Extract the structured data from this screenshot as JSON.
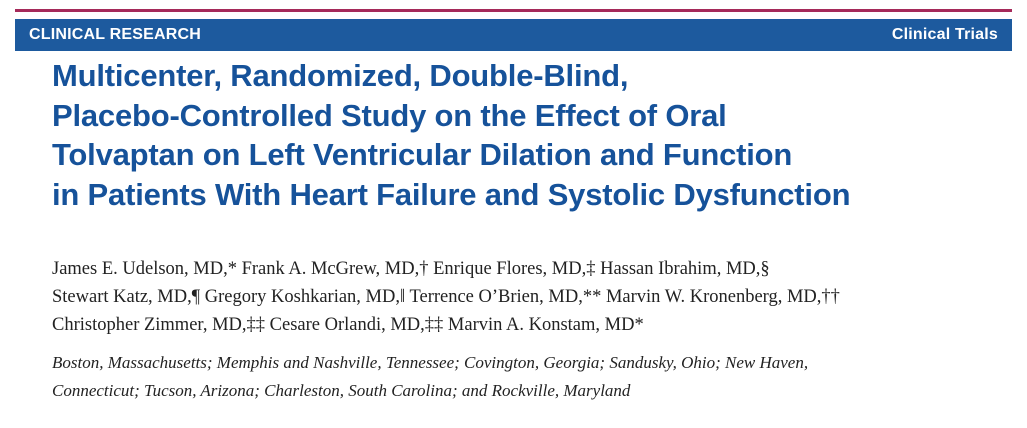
{
  "header": {
    "section_left": "CLINICAL RESEARCH",
    "section_right": "Clinical Trials"
  },
  "article": {
    "title_lines": [
      "Multicenter, Randomized, Double-Blind,",
      "Placebo-Controlled Study on the Effect of Oral",
      "Tolvaptan on Left Ventricular Dilation and Function",
      "in Patients With Heart Failure and Systolic Dysfunction"
    ],
    "author_lines": [
      "James E. Udelson, MD,* Frank A. McGrew, MD,† Enrique Flores, MD,‡ Hassan Ibrahim, MD,§",
      "Stewart Katz, MD,¶ Gregory Koshkarian, MD,‖ Terrence O’Brien, MD,** Marvin W. Kronenberg, MD,††",
      "Christopher Zimmer, MD,‡‡ Cesare Orlandi, MD,‡‡ Marvin A. Konstam, MD*"
    ],
    "affiliation_lines": [
      "Boston, Massachusetts; Memphis and Nashville, Tennessee; Covington, Georgia; Sandusky, Ohio; New Haven,",
      "Connecticut; Tucson, Arizona; Charleston, South Carolina; and Rockville, Maryland"
    ]
  },
  "colors": {
    "accent_rule": "#a52a5a",
    "section_bar": "#1d5a9e",
    "title_text": "#16529a"
  }
}
